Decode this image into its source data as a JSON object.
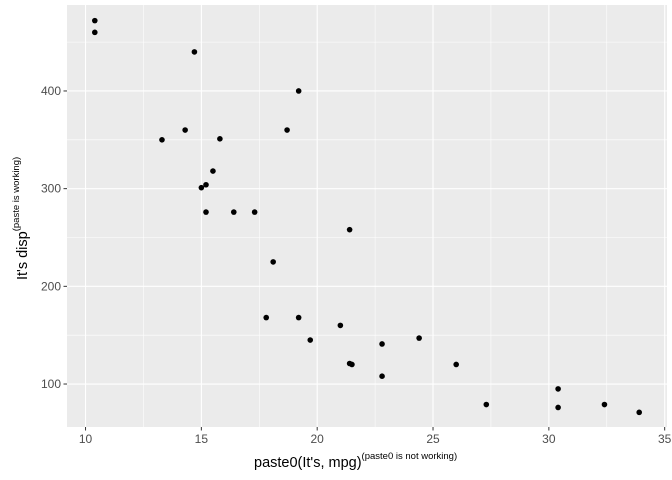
{
  "chart_data": {
    "type": "scatter",
    "xlabel": "paste0(It's, mpg)",
    "xlabel_superscript": "(paste0 is not working)",
    "ylabel": "It's disp",
    "ylabel_superscript": "(paste is working)",
    "xlim": [
      9.2,
      35.1
    ],
    "ylim": [
      56,
      488
    ],
    "x_ticks": [
      10,
      15,
      20,
      25,
      30,
      35
    ],
    "y_ticks": [
      100,
      200,
      300,
      400
    ],
    "x_tick_labels": [
      "10",
      "15",
      "20",
      "25",
      "30",
      "35"
    ],
    "y_tick_labels": [
      "100",
      "200",
      "300",
      "400"
    ],
    "grid": true,
    "panel_background": "#ebebeb",
    "grid_color": "#ffffff",
    "point_color": "#000000",
    "points": [
      {
        "x": 10.4,
        "y": 472
      },
      {
        "x": 10.4,
        "y": 460
      },
      {
        "x": 14.7,
        "y": 440
      },
      {
        "x": 19.2,
        "y": 400
      },
      {
        "x": 14.3,
        "y": 360
      },
      {
        "x": 18.7,
        "y": 360
      },
      {
        "x": 13.3,
        "y": 350
      },
      {
        "x": 15.8,
        "y": 351
      },
      {
        "x": 15.5,
        "y": 318
      },
      {
        "x": 15.2,
        "y": 304
      },
      {
        "x": 15.0,
        "y": 301
      },
      {
        "x": 15.2,
        "y": 276
      },
      {
        "x": 16.4,
        "y": 276
      },
      {
        "x": 17.3,
        "y": 276
      },
      {
        "x": 21.4,
        "y": 258
      },
      {
        "x": 18.1,
        "y": 225
      },
      {
        "x": 17.8,
        "y": 168
      },
      {
        "x": 19.2,
        "y": 168
      },
      {
        "x": 21.0,
        "y": 160
      },
      {
        "x": 19.7,
        "y": 145
      },
      {
        "x": 24.4,
        "y": 147
      },
      {
        "x": 22.8,
        "y": 141
      },
      {
        "x": 21.4,
        "y": 121
      },
      {
        "x": 21.5,
        "y": 120
      },
      {
        "x": 26.0,
        "y": 120
      },
      {
        "x": 22.8,
        "y": 108
      },
      {
        "x": 30.4,
        "y": 95
      },
      {
        "x": 27.3,
        "y": 79
      },
      {
        "x": 32.4,
        "y": 79
      },
      {
        "x": 30.4,
        "y": 76
      },
      {
        "x": 33.9,
        "y": 71
      }
    ]
  }
}
